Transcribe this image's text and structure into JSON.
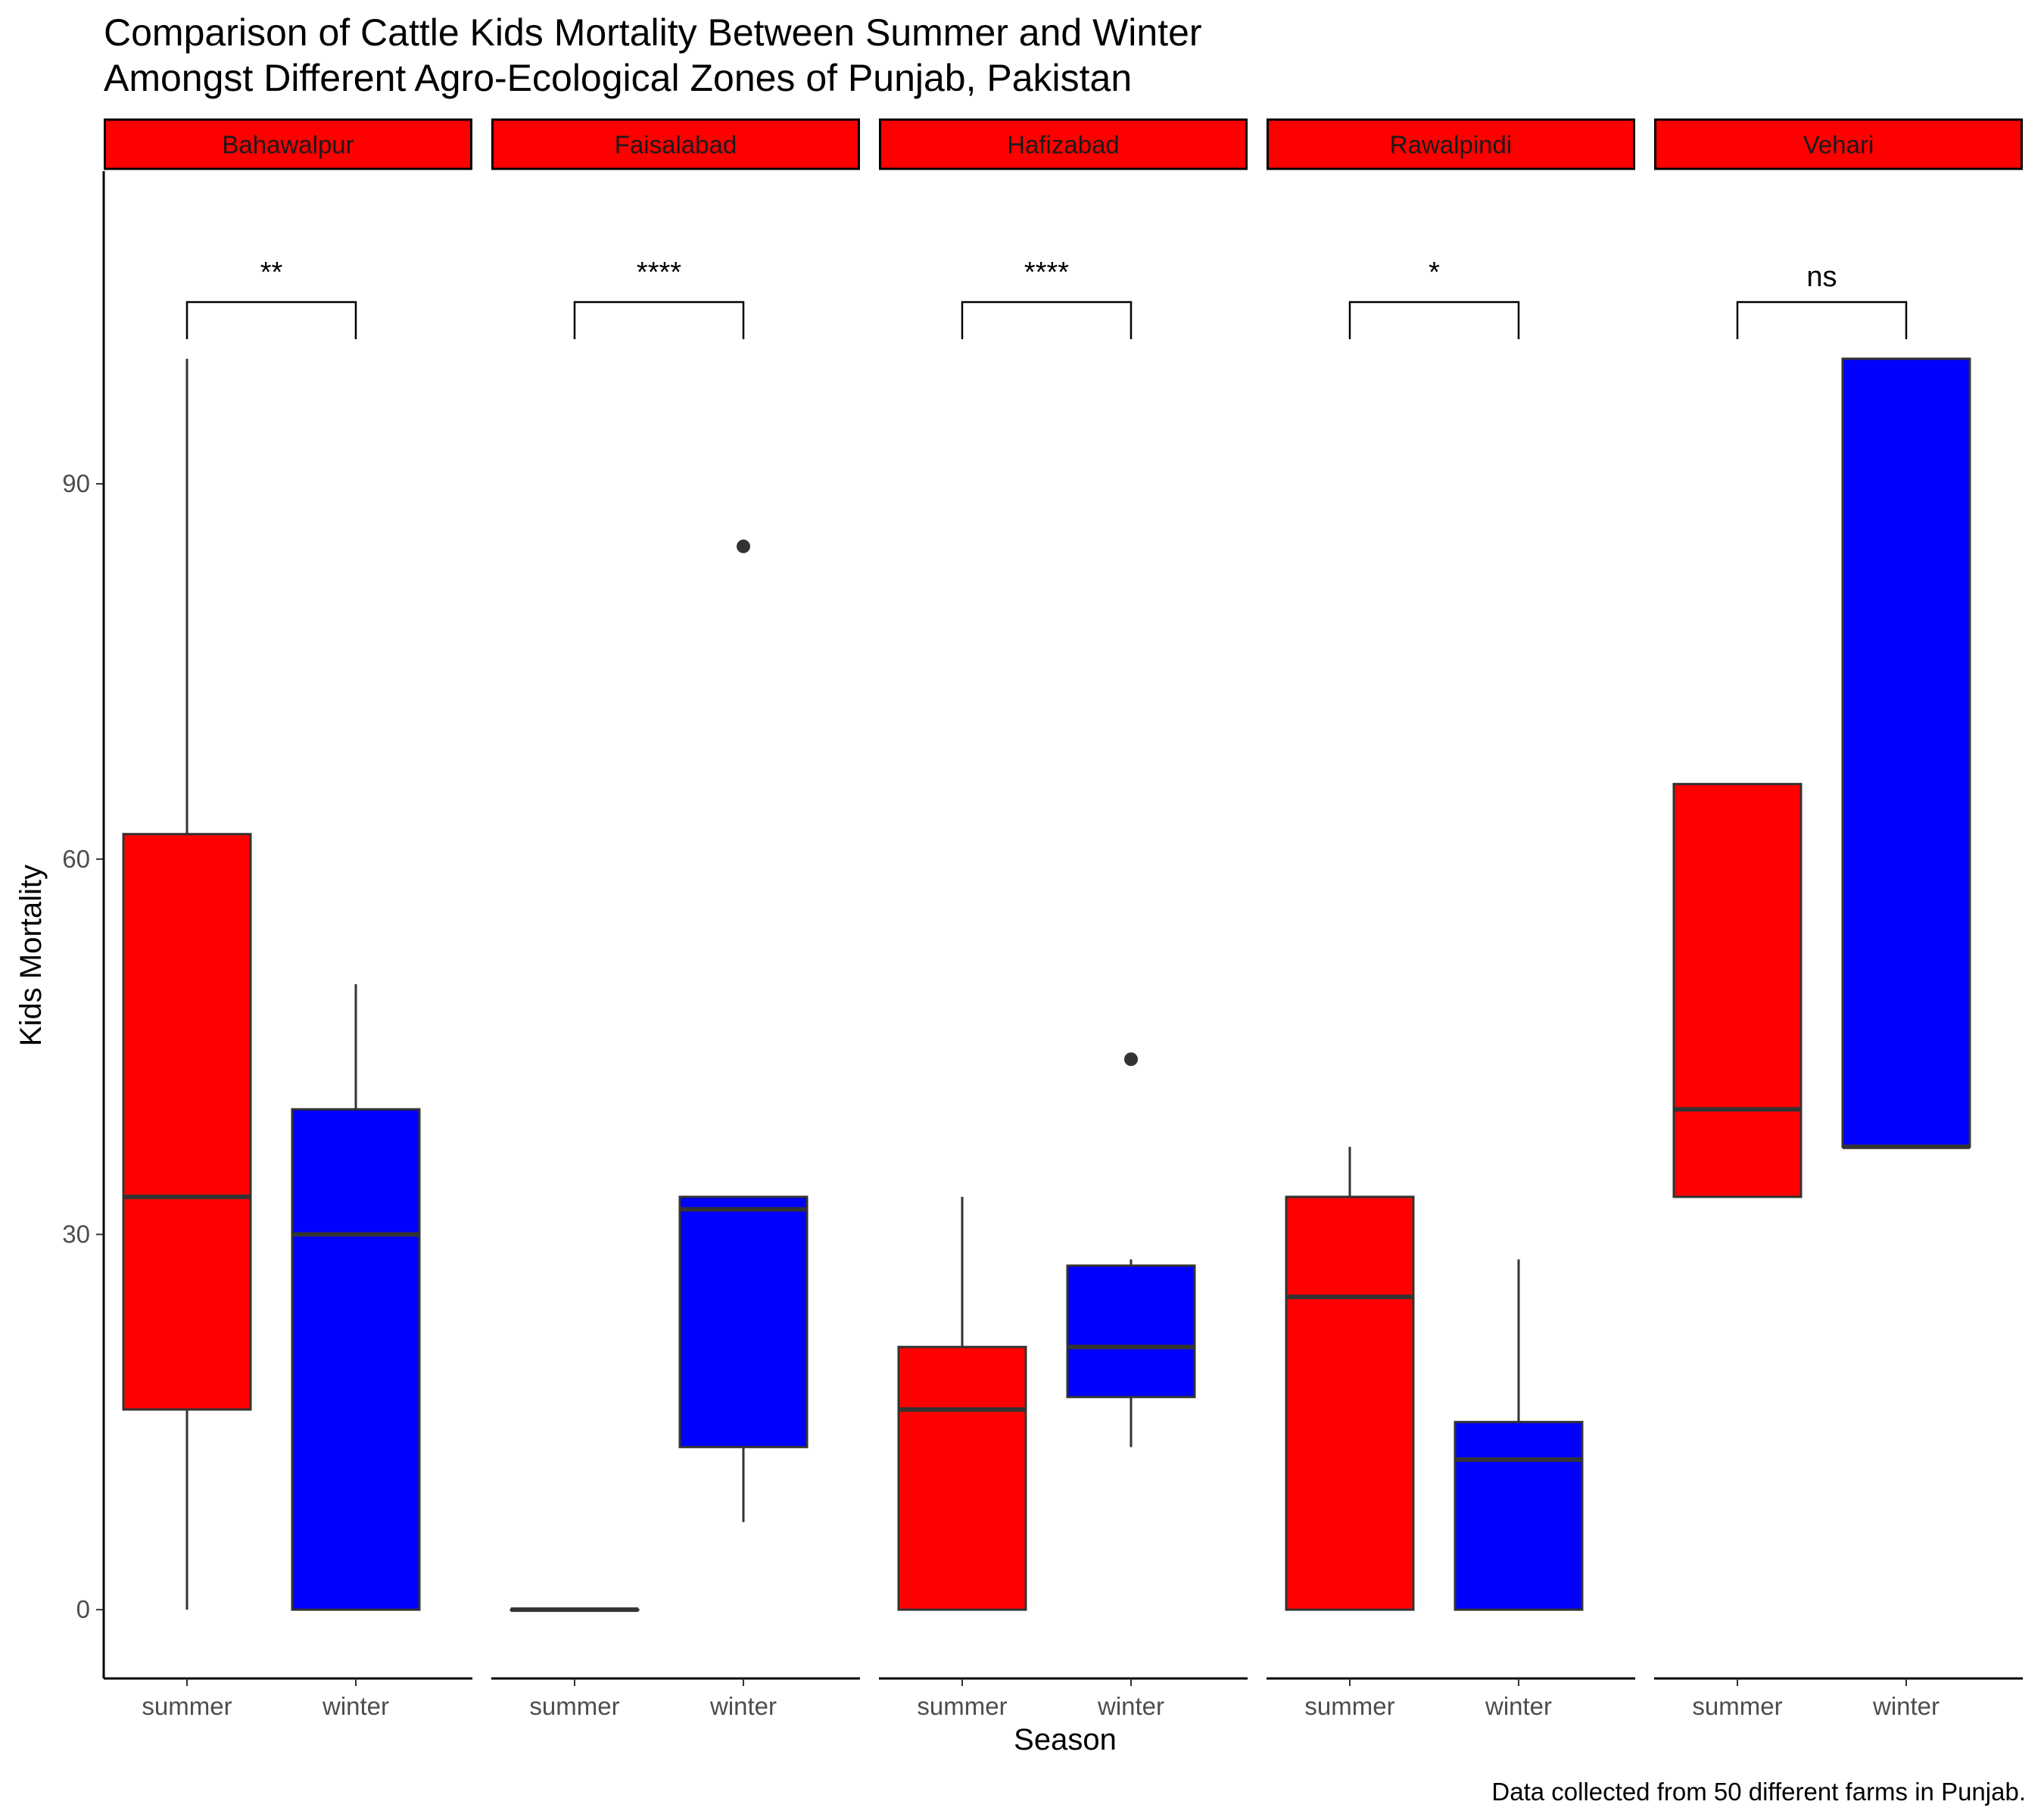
{
  "chart_data": {
    "type": "box",
    "title_lines": [
      "Comparison of Cattle Kids Mortality Between Summer and Winter",
      "Amongst Different Agro-Ecological Zones of Punjab, Pakistan"
    ],
    "xlabel": "Season",
    "ylabel": "Kids Mortality",
    "caption": "Data collected from 50 different farms in Punjab.",
    "ylim": [
      -5.5,
      115
    ],
    "yticks": [
      0,
      30,
      60,
      90
    ],
    "categories": [
      "summer",
      "winter"
    ],
    "colors": {
      "summer": "#ff0000",
      "winter": "#0000ff",
      "strip_fill": "#ff0000",
      "box_line": "#333333"
    },
    "panels": [
      {
        "name": "Bahawalpur",
        "signif": "**",
        "boxes": [
          {
            "season": "summer",
            "min": 0,
            "q1": 16,
            "median": 33,
            "q3": 62,
            "max": 100,
            "outliers": []
          },
          {
            "season": "winter",
            "min": 0,
            "q1": 0,
            "median": 30,
            "q3": 40,
            "max": 50,
            "outliers": []
          }
        ]
      },
      {
        "name": "Faisalabad",
        "signif": "****",
        "boxes": [
          {
            "season": "summer",
            "min": 0,
            "q1": 0,
            "median": 0,
            "q3": 0,
            "max": 0,
            "outliers": []
          },
          {
            "season": "winter",
            "min": 7,
            "q1": 13,
            "median": 32,
            "q3": 33,
            "max": 33,
            "outliers": [
              85
            ]
          }
        ]
      },
      {
        "name": "Hafizabad",
        "signif": "****",
        "boxes": [
          {
            "season": "summer",
            "min": 0,
            "q1": 0,
            "median": 16,
            "q3": 21,
            "max": 33,
            "outliers": []
          },
          {
            "season": "winter",
            "min": 13,
            "q1": 17,
            "median": 21,
            "q3": 27.5,
            "max": 28,
            "outliers": [
              44
            ]
          }
        ]
      },
      {
        "name": "Rawalpindi",
        "signif": "*",
        "boxes": [
          {
            "season": "summer",
            "min": 0,
            "q1": 0,
            "median": 25,
            "q3": 33,
            "max": 37,
            "outliers": []
          },
          {
            "season": "winter",
            "min": 0,
            "q1": 0,
            "median": 12,
            "q3": 15,
            "max": 28,
            "outliers": []
          }
        ]
      },
      {
        "name": "Vehari",
        "signif": "ns",
        "boxes": [
          {
            "season": "summer",
            "min": 33,
            "q1": 33,
            "median": 40,
            "q3": 66,
            "max": 66,
            "outliers": []
          },
          {
            "season": "winter",
            "min": 37,
            "q1": 37,
            "median": 37,
            "q3": 100,
            "max": 100,
            "outliers": []
          }
        ]
      }
    ]
  }
}
